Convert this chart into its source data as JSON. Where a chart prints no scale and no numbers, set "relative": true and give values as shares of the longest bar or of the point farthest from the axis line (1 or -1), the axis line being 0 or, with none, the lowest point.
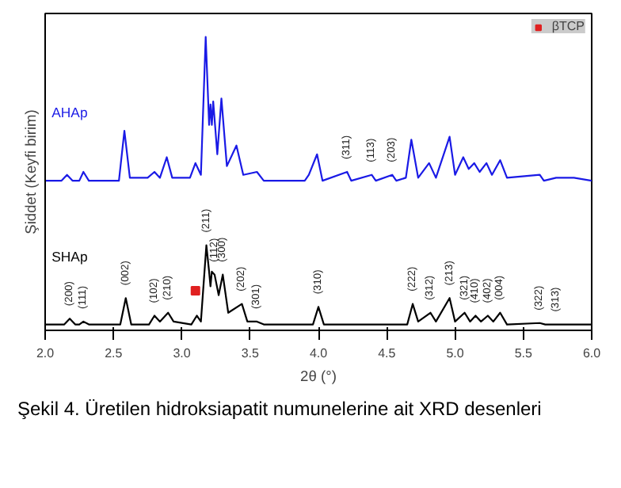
{
  "chart_data": {
    "type": "line",
    "relative": true,
    "xlabel": "2θ (°)",
    "ylabel": "Şiddet (Keyfi birim)",
    "xlim": [
      2.0,
      6.0
    ],
    "xticks": [
      {
        "value": 2.0,
        "label": "2.0"
      },
      {
        "value": 2.5,
        "label": "2.5"
      },
      {
        "value": 3.0,
        "label": "3.0"
      },
      {
        "value": 3.5,
        "label": "3.5"
      },
      {
        "value": 4.0,
        "label": "4.0"
      },
      {
        "value": 4.5,
        "label": "4.5"
      },
      {
        "value": 5.0,
        "label": "5.0"
      },
      {
        "value": 5.5,
        "label": "5.5"
      },
      {
        "value": 6.0,
        "label": "6.0"
      }
    ],
    "grid": false,
    "legend": "top right",
    "marker": "none",
    "line_style": "solid",
    "series": [
      {
        "name": "AHAp",
        "color": "#1a1ae6",
        "x": [
          2.0,
          2.12,
          2.16,
          2.2,
          2.25,
          2.28,
          2.32,
          2.54,
          2.58,
          2.62,
          2.75,
          2.8,
          2.84,
          2.89,
          2.93,
          3.06,
          3.1,
          3.14,
          3.175,
          3.2,
          3.21,
          3.22,
          3.23,
          3.26,
          3.29,
          3.33,
          3.4,
          3.45,
          3.55,
          3.6,
          3.9,
          3.93,
          3.99,
          4.03,
          4.21,
          4.24,
          4.39,
          4.42,
          4.54,
          4.57,
          4.64,
          4.68,
          4.73,
          4.81,
          4.86,
          4.96,
          5.0,
          5.06,
          5.1,
          5.14,
          5.18,
          5.23,
          5.27,
          5.33,
          5.38,
          5.62,
          5.65,
          5.74,
          5.87,
          6.0
        ],
        "values": [
          0.51,
          0.51,
          0.53,
          0.51,
          0.51,
          0.54,
          0.51,
          0.51,
          0.68,
          0.52,
          0.52,
          0.54,
          0.52,
          0.59,
          0.52,
          0.52,
          0.57,
          0.53,
          1.0,
          0.7,
          0.77,
          0.7,
          0.78,
          0.6,
          0.79,
          0.56,
          0.63,
          0.53,
          0.54,
          0.51,
          0.51,
          0.53,
          0.6,
          0.51,
          0.54,
          0.51,
          0.53,
          0.51,
          0.53,
          0.51,
          0.52,
          0.65,
          0.52,
          0.57,
          0.52,
          0.66,
          0.53,
          0.59,
          0.55,
          0.57,
          0.54,
          0.57,
          0.53,
          0.58,
          0.52,
          0.53,
          0.51,
          0.52,
          0.52,
          0.51
        ]
      },
      {
        "name": "SHAp",
        "color": "#000000",
        "x": [
          2.0,
          2.14,
          2.18,
          2.22,
          2.25,
          2.28,
          2.32,
          2.55,
          2.59,
          2.63,
          2.76,
          2.8,
          2.84,
          2.9,
          2.94,
          3.07,
          3.11,
          3.14,
          3.18,
          3.2,
          3.21,
          3.22,
          3.24,
          3.27,
          3.3,
          3.34,
          3.44,
          3.48,
          3.55,
          3.6,
          3.96,
          4.0,
          4.04,
          4.65,
          4.69,
          4.73,
          4.82,
          4.86,
          4.96,
          5.0,
          5.07,
          5.11,
          5.15,
          5.19,
          5.24,
          5.28,
          5.33,
          5.38,
          5.62,
          5.66,
          5.72,
          6.0
        ],
        "values": [
          0.02,
          0.02,
          0.04,
          0.02,
          0.02,
          0.03,
          0.02,
          0.02,
          0.11,
          0.02,
          0.02,
          0.05,
          0.03,
          0.06,
          0.03,
          0.02,
          0.05,
          0.03,
          0.29,
          0.2,
          0.15,
          0.2,
          0.19,
          0.12,
          0.19,
          0.06,
          0.09,
          0.03,
          0.03,
          0.02,
          0.02,
          0.08,
          0.02,
          0.02,
          0.09,
          0.03,
          0.06,
          0.03,
          0.11,
          0.03,
          0.06,
          0.03,
          0.05,
          0.03,
          0.05,
          0.03,
          0.06,
          0.02,
          0.025,
          0.02,
          0.02,
          0.02
        ]
      },
      {
        "name": "βTCP",
        "type": "scatter",
        "marker": "square",
        "color": "#e02020",
        "x": [
          3.1
        ],
        "values": [
          0.135
        ]
      }
    ],
    "annotations": [
      {
        "text": "(311)",
        "x": 4.21,
        "y": 0.54
      },
      {
        "text": "(113)",
        "x": 4.39,
        "y": 0.53
      },
      {
        "text": "(203)",
        "x": 4.54,
        "y": 0.53
      },
      {
        "text": "(200)",
        "x": 2.18,
        "y": 0.04
      },
      {
        "text": "(111)",
        "x": 2.28,
        "y": 0.03
      },
      {
        "text": "(002)",
        "x": 2.59,
        "y": 0.11
      },
      {
        "text": "(102)",
        "x": 2.8,
        "y": 0.05
      },
      {
        "text": "(210)",
        "x": 2.9,
        "y": 0.06
      },
      {
        "text": "(211)",
        "x": 3.18,
        "y": 0.29
      },
      {
        "text": "(112)",
        "x": 3.24,
        "y": 0.19
      },
      {
        "text": "(300)",
        "x": 3.3,
        "y": 0.19
      },
      {
        "text": "(202)",
        "x": 3.44,
        "y": 0.09
      },
      {
        "text": "(301)",
        "x": 3.55,
        "y": 0.03
      },
      {
        "text": "(310)",
        "x": 4.0,
        "y": 0.08
      },
      {
        "text": "(222)",
        "x": 4.69,
        "y": 0.09
      },
      {
        "text": "(312)",
        "x": 4.82,
        "y": 0.06
      },
      {
        "text": "(213)",
        "x": 4.96,
        "y": 0.11
      },
      {
        "text": "(321)",
        "x": 5.07,
        "y": 0.06
      },
      {
        "text": "(410)",
        "x": 5.15,
        "y": 0.05
      },
      {
        "text": "(402)",
        "x": 5.24,
        "y": 0.05
      },
      {
        "text": "(004)",
        "x": 5.33,
        "y": 0.06
      },
      {
        "text": "(322)",
        "x": 5.62,
        "y": 0.025
      },
      {
        "text": "(313)",
        "x": 5.74,
        "y": 0.02
      },
      "Şekil 4. Üretilen hidroksiapatit numunelerine ait XRD desenleri"
    ]
  }
}
